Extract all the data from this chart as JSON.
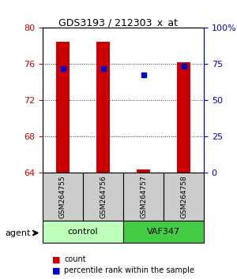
{
  "title": "GDS3193 / 212303_x_at",
  "samples": [
    "GSM264755",
    "GSM264756",
    "GSM264757",
    "GSM264758"
  ],
  "groups": [
    "control",
    "control",
    "VAF347",
    "VAF347"
  ],
  "group_labels": [
    "control",
    "VAF347"
  ],
  "group_colors": [
    "#aaffaa",
    "#55dd55"
  ],
  "sample_bg_color": "#cccccc",
  "ylim": [
    64,
    80
  ],
  "yticks_left": [
    64,
    68,
    72,
    76,
    80
  ],
  "yticks_right": [
    0,
    25,
    50,
    75,
    100
  ],
  "yright_vals": [
    64,
    68,
    72,
    76,
    80
  ],
  "bar_color": "#cc0000",
  "dot_color": "#0000cc",
  "bar_values": [
    78.5,
    78.5,
    64.4,
    76.2
  ],
  "dot_values": [
    75.5,
    75.5,
    74.8,
    75.8
  ],
  "bar_bottom": 64,
  "legend_count_label": "count",
  "legend_pct_label": "percentile rank within the sample",
  "agent_label": "agent",
  "xlabel": "",
  "grid_color": "#333333",
  "right_axis_color": "#0000cc",
  "left_axis_color": "#cc0000"
}
